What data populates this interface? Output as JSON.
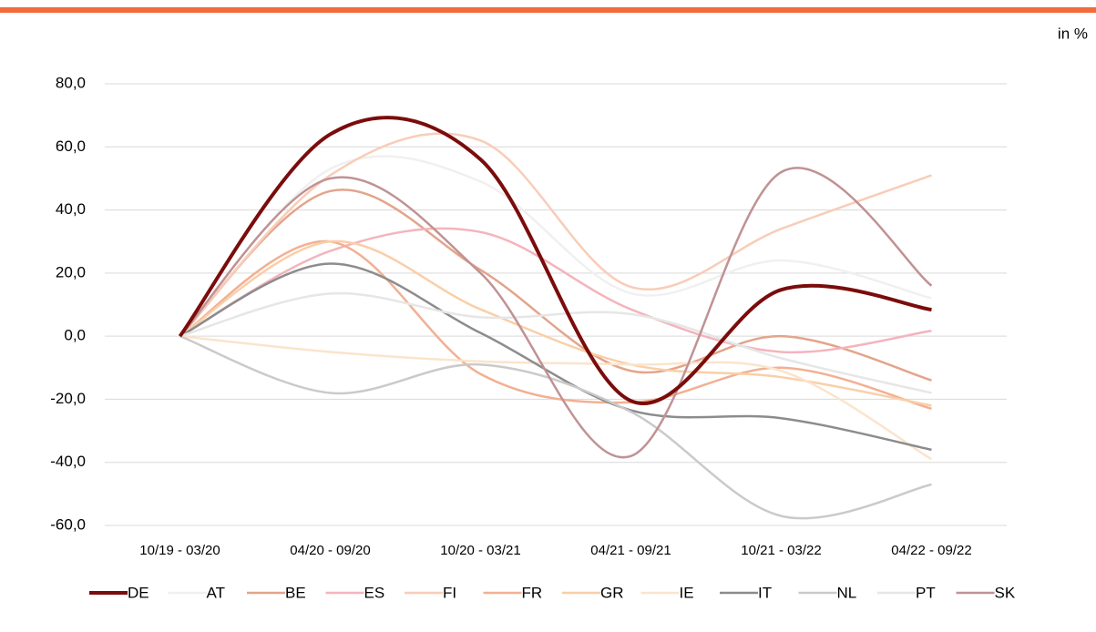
{
  "chart_data": {
    "type": "line",
    "unit_label": "in %",
    "categories": [
      "10/19 - 03/20",
      "04/20 - 09/20",
      "10/20 - 03/21",
      "04/21 - 09/21",
      "10/21 - 03/22",
      "04/22 - 09/22"
    ],
    "ylim": [
      -60,
      80
    ],
    "yticks": [
      {
        "value": -60,
        "label": "-60,0"
      },
      {
        "value": -40,
        "label": "-40,0"
      },
      {
        "value": -20,
        "label": "-20,0"
      },
      {
        "value": 0,
        "label": "0,0"
      },
      {
        "value": 20,
        "label": "20,0"
      },
      {
        "value": 40,
        "label": "40,0"
      },
      {
        "value": 60,
        "label": "60,0"
      },
      {
        "value": 80,
        "label": "80,0"
      }
    ],
    "grid": true,
    "series": [
      {
        "name": "DE",
        "color": "#7b0c0c",
        "values": [
          0,
          64,
          56,
          -20.5,
          14.7,
          8.4
        ]
      },
      {
        "name": "AT",
        "color": "#f0f0f0",
        "values": [
          0,
          53,
          49,
          13.6,
          24,
          12
        ]
      },
      {
        "name": "BE",
        "color": "#e3a48c",
        "values": [
          0,
          46,
          21,
          -11,
          0,
          -14
        ]
      },
      {
        "name": "ES",
        "color": "#f4b4bc",
        "values": [
          0,
          27,
          33,
          8.5,
          -5,
          1.7
        ]
      },
      {
        "name": "FI",
        "color": "#f8cdb8",
        "values": [
          0,
          51,
          62,
          15.6,
          34,
          51
        ]
      },
      {
        "name": "FR",
        "color": "#f2b092",
        "values": [
          0,
          30,
          -12,
          -21,
          -10,
          -23
        ]
      },
      {
        "name": "GR",
        "color": "#f9cfa8",
        "values": [
          0,
          30,
          8.5,
          -9,
          -13,
          -22
        ]
      },
      {
        "name": "IE",
        "color": "#fbe4cc",
        "values": [
          0,
          -5,
          -8,
          -9,
          -11,
          -39
        ]
      },
      {
        "name": "IT",
        "color": "#8c8c8c",
        "values": [
          0,
          23,
          1,
          -23.5,
          -26,
          -36
        ]
      },
      {
        "name": "NL",
        "color": "#cacaca",
        "values": [
          0,
          -18,
          -9,
          -24,
          -57,
          -47
        ]
      },
      {
        "name": "PT",
        "color": "#e6e6e6",
        "values": [
          0,
          13.5,
          6,
          7,
          -7,
          -18
        ]
      },
      {
        "name": "SK",
        "color": "#c09294",
        "values": [
          0,
          50,
          20,
          -38,
          52,
          16
        ]
      }
    ]
  }
}
